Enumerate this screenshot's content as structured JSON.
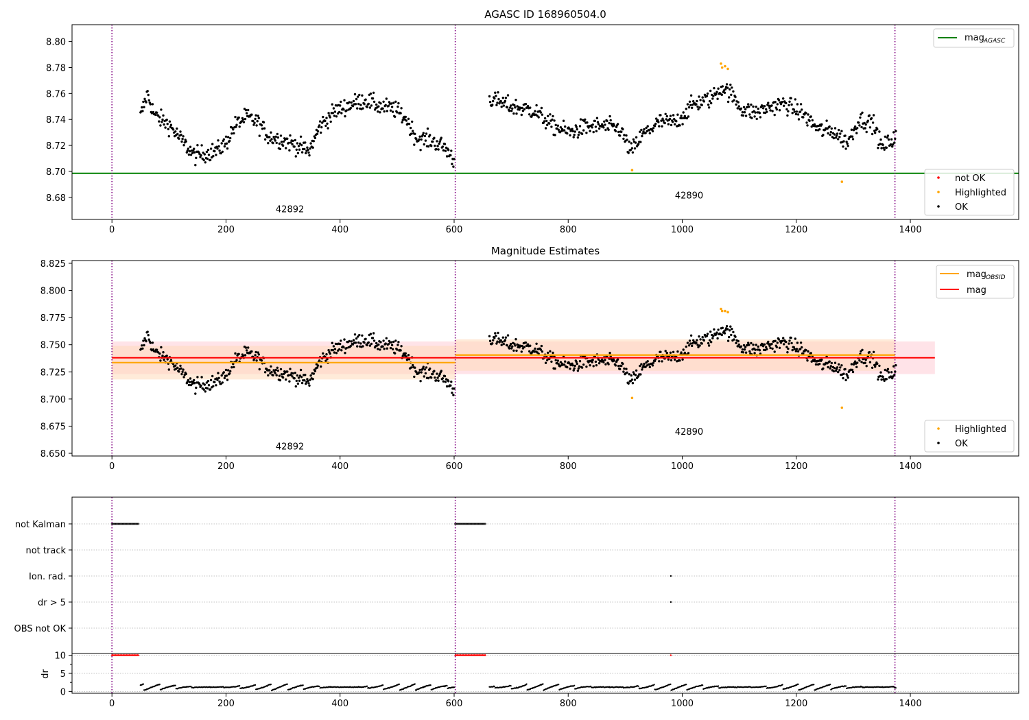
{
  "figure": {
    "title_top": "AGASC ID 168960504.0",
    "title_mid": "Magnitude Estimates"
  },
  "colors": {
    "ok": "#000000",
    "not_ok": "#ff0000",
    "highlighted": "#ffa500",
    "mag_agasc": "#008000",
    "mag": "#ff0000",
    "mag_obsid": "#ffa500",
    "obs_boundary": "#800080",
    "mag_band": "#ffc0cb",
    "obsid_band": "#ffdab9"
  },
  "chart_data": [
    {
      "id": "top",
      "type": "scatter",
      "title": "AGASC ID 168960504.0",
      "xlim": [
        -70,
        1590
      ],
      "ylim": [
        8.663,
        8.813
      ],
      "xticks": [
        0,
        200,
        400,
        600,
        800,
        1000,
        1200,
        1400
      ],
      "yticks": [
        8.68,
        8.7,
        8.72,
        8.74,
        8.76,
        8.78,
        8.8
      ],
      "ytick_labels": [
        "8.68",
        "8.70",
        "8.72",
        "8.74",
        "8.76",
        "8.78",
        "8.80"
      ],
      "hlines": [
        {
          "series": "mag_agasc",
          "y": 8.6985
        }
      ],
      "vlines": [
        0,
        602,
        1373
      ],
      "obsid_labels": [
        {
          "text": "42892",
          "x": 300,
          "y": 8.6685
        },
        {
          "text": "42890",
          "x": 1000,
          "y": 8.679
        }
      ],
      "legend_lines": [
        {
          "key": "mag_agasc",
          "label": "mag",
          "sub": "AGASC"
        }
      ],
      "legend_points": [
        {
          "key": "not_ok",
          "label": "not OK"
        },
        {
          "key": "highlighted",
          "label": "Highlighted"
        },
        {
          "key": "ok",
          "label": "OK"
        }
      ],
      "highlighted_points": [
        [
          1068,
          8.783
        ],
        [
          1070,
          8.78
        ],
        [
          1075,
          8.781
        ],
        [
          1080,
          8.779
        ],
        [
          912,
          8.701
        ],
        [
          1280,
          8.692
        ]
      ]
    },
    {
      "id": "mid",
      "type": "scatter",
      "title": "Magnitude Estimates",
      "xlim": [
        -70,
        1590
      ],
      "ylim": [
        8.6475,
        8.8275
      ],
      "xticks": [
        0,
        200,
        400,
        600,
        800,
        1000,
        1200,
        1400
      ],
      "yticks": [
        8.65,
        8.675,
        8.7,
        8.725,
        8.75,
        8.775,
        8.8,
        8.825
      ],
      "ytick_labels": [
        "8.650",
        "8.675",
        "8.700",
        "8.725",
        "8.750",
        "8.775",
        "8.800",
        "8.825"
      ],
      "mag": {
        "x": [
          0,
          1443
        ],
        "y": 8.738,
        "band": [
          8.723,
          8.753
        ]
      },
      "mag_obsid": [
        {
          "x": [
            0,
            602
          ],
          "y": 8.7335,
          "band": [
            8.718,
            8.749
          ]
        },
        {
          "x": [
            602,
            1373
          ],
          "y": 8.7405,
          "band": [
            8.726,
            8.755
          ]
        }
      ],
      "vlines": [
        0,
        602,
        1373
      ],
      "obsid_labels": [
        {
          "text": "42892",
          "x": 300,
          "y": 8.6535
        },
        {
          "text": "42890",
          "x": 1000,
          "y": 8.667
        }
      ],
      "legend_lines": [
        {
          "key": "mag_obsid",
          "label": "mag",
          "sub": "OBSID"
        },
        {
          "key": "mag",
          "label": "mag",
          "sub": ""
        }
      ],
      "legend_points": [
        {
          "key": "highlighted",
          "label": "Highlighted"
        },
        {
          "key": "ok",
          "label": "OK"
        }
      ],
      "highlighted_points": [
        [
          1068,
          8.783
        ],
        [
          1070,
          8.781
        ],
        [
          1075,
          8.781
        ],
        [
          1080,
          8.78
        ],
        [
          912,
          8.701
        ],
        [
          1280,
          8.692
        ]
      ]
    },
    {
      "id": "flags",
      "type": "scatter",
      "xlim": [
        -70,
        1590
      ],
      "categories": [
        "not Kalman",
        "not track",
        "Ion. rad.",
        "dr > 5",
        "OBS not OK"
      ],
      "flag_points": [
        {
          "category": "not Kalman",
          "ranges": [
            [
              0,
              48
            ],
            [
              602,
              656
            ]
          ]
        },
        {
          "category": "Ion. rad.",
          "x": [
            980
          ]
        },
        {
          "category": "dr > 5",
          "x": [
            980
          ]
        }
      ],
      "vlines": [
        0,
        602,
        1373
      ]
    },
    {
      "id": "dr",
      "type": "scatter",
      "ylabel": "dr",
      "xlim": [
        -70,
        1590
      ],
      "ylim": [
        -0.5,
        10.5
      ],
      "xticks": [
        0,
        200,
        400,
        600,
        800,
        1000,
        1200,
        1400
      ],
      "yticks": [
        0,
        5,
        10
      ],
      "ytick_labels": [
        "0",
        "5",
        "10"
      ],
      "capped_value": 10,
      "capped_ranges": [
        [
          0,
          48
        ],
        [
          602,
          656
        ]
      ],
      "capped_points_x": [
        980
      ],
      "vlines": [
        0,
        602,
        1373
      ]
    }
  ],
  "series": {
    "obs_42892": {
      "x_range": [
        50,
        600
      ],
      "trend": [
        [
          50,
          8.742
        ],
        [
          62,
          8.76
        ],
        [
          75,
          8.743
        ],
        [
          100,
          8.736
        ],
        [
          120,
          8.725
        ],
        [
          145,
          8.712
        ],
        [
          165,
          8.714
        ],
        [
          185,
          8.716
        ],
        [
          200,
          8.722
        ],
        [
          215,
          8.735
        ],
        [
          235,
          8.742
        ],
        [
          255,
          8.738
        ],
        [
          275,
          8.727
        ],
        [
          300,
          8.724
        ],
        [
          325,
          8.72
        ],
        [
          345,
          8.715
        ],
        [
          365,
          8.735
        ],
        [
          390,
          8.746
        ],
        [
          420,
          8.752
        ],
        [
          445,
          8.755
        ],
        [
          470,
          8.75
        ],
        [
          495,
          8.748
        ],
        [
          515,
          8.741
        ],
        [
          535,
          8.725
        ],
        [
          560,
          8.724
        ],
        [
          585,
          8.718
        ],
        [
          600,
          8.708
        ]
      ],
      "noise": 0.007
    },
    "obs_42890": {
      "x_range": [
        662,
        1375
      ],
      "trend": [
        [
          662,
          8.756
        ],
        [
          700,
          8.75
        ],
        [
          740,
          8.747
        ],
        [
          770,
          8.736
        ],
        [
          800,
          8.73
        ],
        [
          830,
          8.734
        ],
        [
          860,
          8.735
        ],
        [
          890,
          8.733
        ],
        [
          910,
          8.715
        ],
        [
          930,
          8.728
        ],
        [
          960,
          8.738
        ],
        [
          990,
          8.738
        ],
        [
          1020,
          8.752
        ],
        [
          1050,
          8.756
        ],
        [
          1070,
          8.765
        ],
        [
          1085,
          8.76
        ],
        [
          1105,
          8.748
        ],
        [
          1130,
          8.745
        ],
        [
          1155,
          8.75
        ],
        [
          1180,
          8.752
        ],
        [
          1210,
          8.745
        ],
        [
          1240,
          8.732
        ],
        [
          1265,
          8.731
        ],
        [
          1290,
          8.722
        ],
        [
          1310,
          8.74
        ],
        [
          1335,
          8.737
        ],
        [
          1350,
          8.718
        ],
        [
          1375,
          8.727
        ]
      ],
      "noise": 0.007
    },
    "dr_segments": {
      "gap": [
        [
          0,
          48
        ],
        [
          602,
          656
        ]
      ],
      "base": 1.2,
      "amplitude": 0.9
    }
  }
}
